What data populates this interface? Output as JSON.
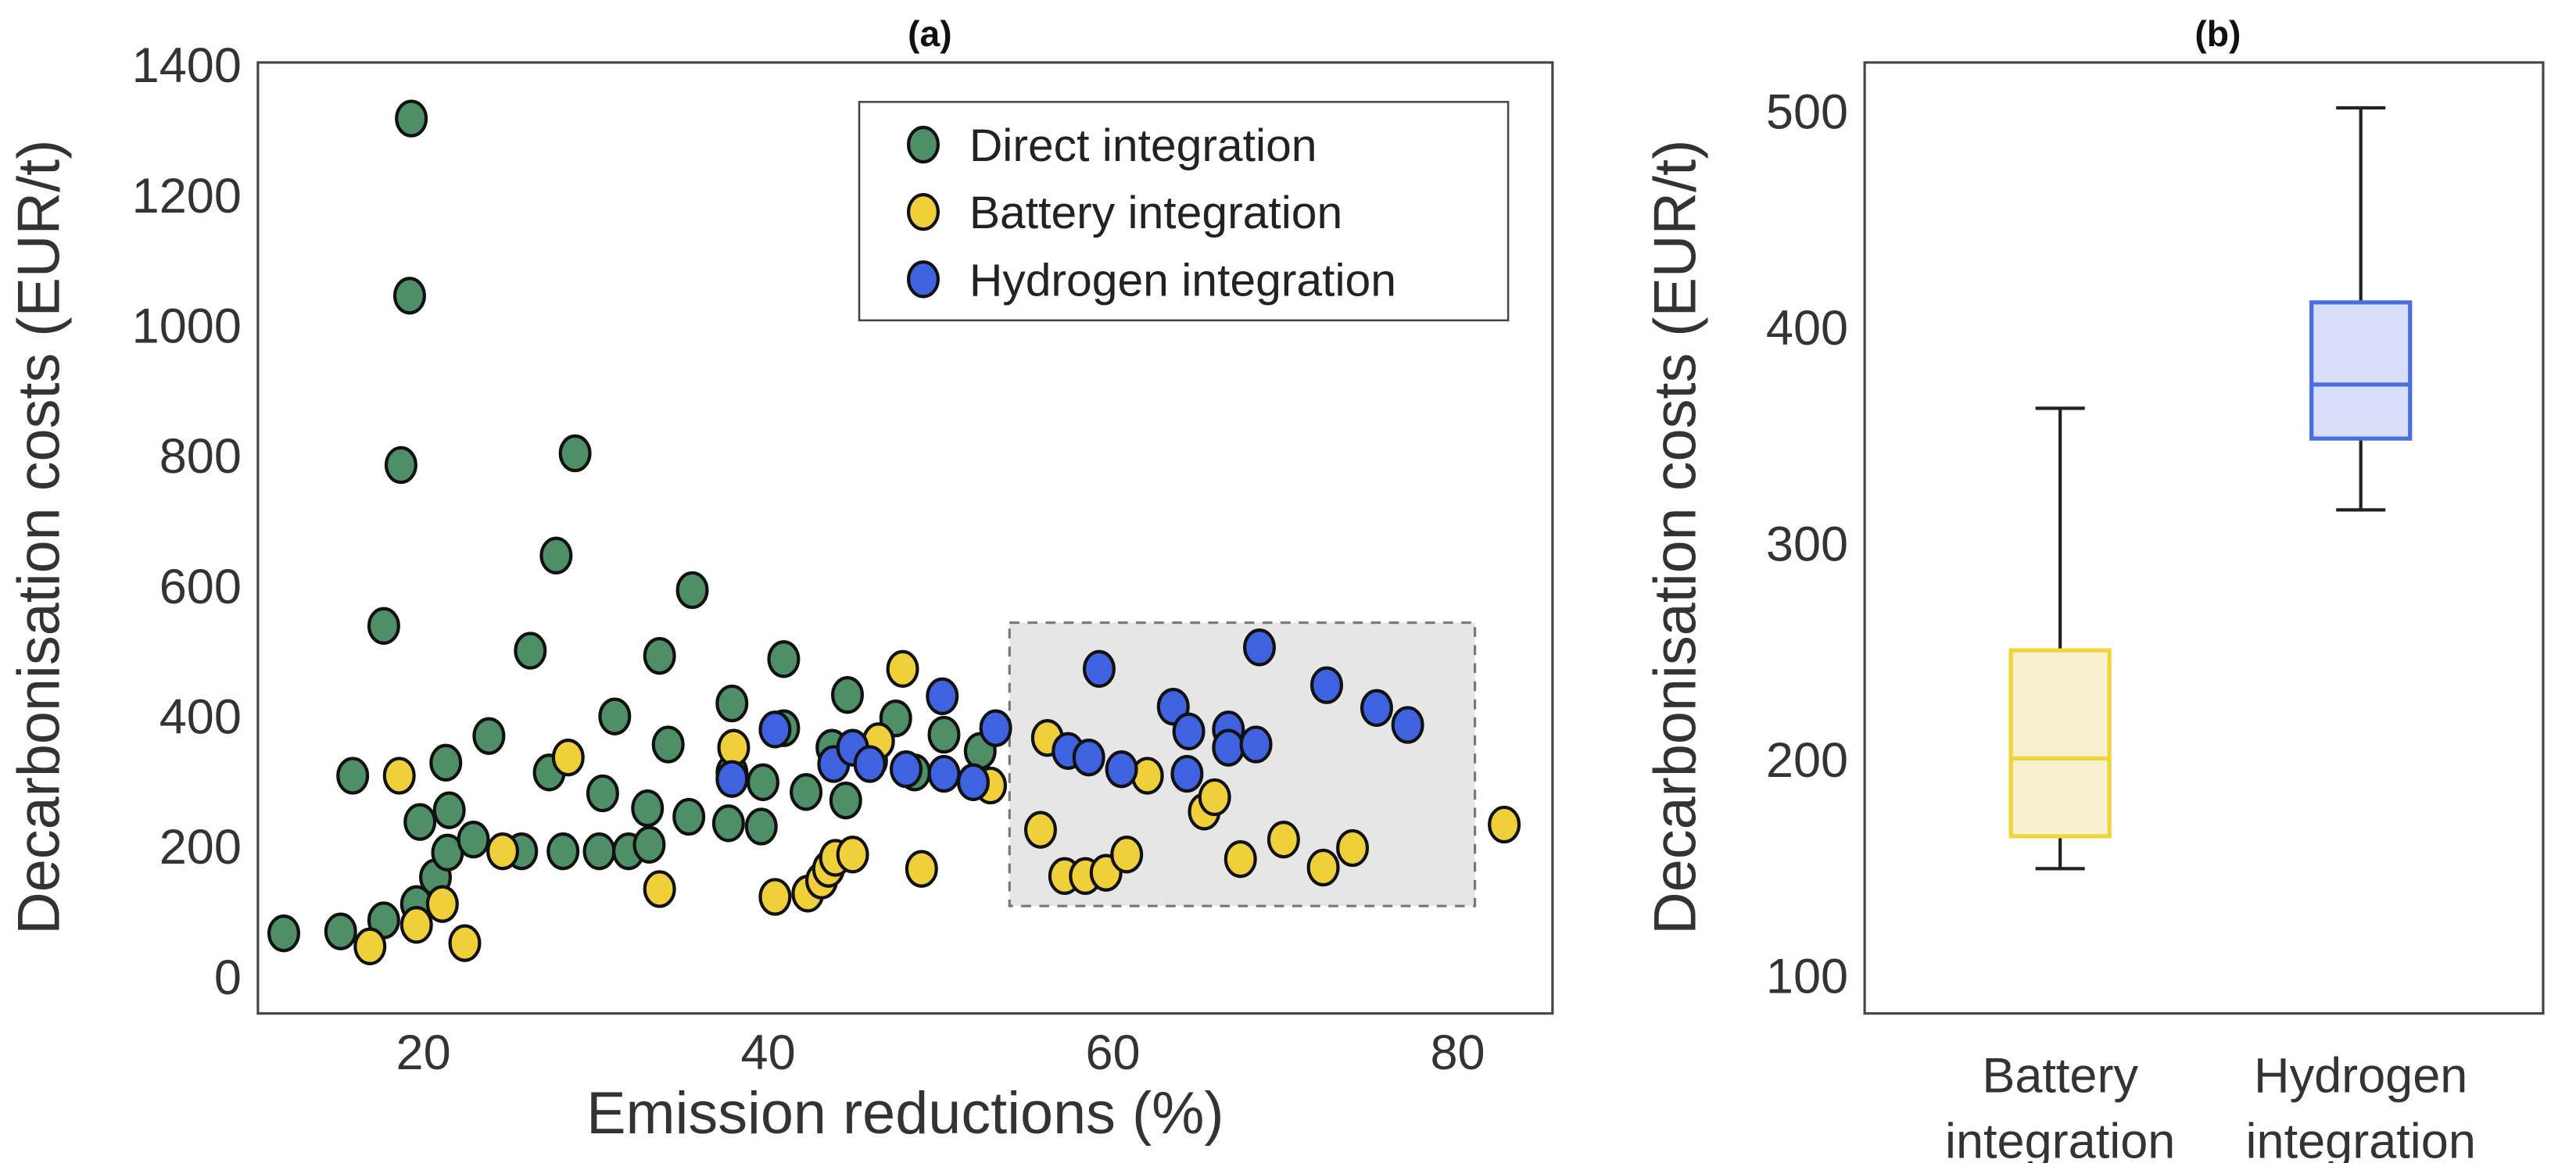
{
  "chart_data": [
    {
      "type": "scatter",
      "title": "(a)",
      "xlabel": "Emission reductions (%)",
      "ylabel": "Decarbonisation costs (EUR/t)",
      "xlim": [
        10.4,
        85.5
      ],
      "ylim": [
        -55,
        1405
      ],
      "xticks": [
        20,
        40,
        60,
        80
      ],
      "yticks": [
        0,
        200,
        400,
        600,
        800,
        1000,
        1200,
        1400
      ],
      "grid": false,
      "legend_position": "top-right",
      "highlight_region": {
        "x": [
          54,
          81
        ],
        "y": [
          110,
          545
        ]
      },
      "series": [
        {
          "name": "Direct integration",
          "color": "#4f8f68",
          "points": [
            [
              11.9,
              68
            ],
            [
              15.2,
              71
            ],
            [
              17.7,
              88
            ],
            [
              19.6,
              113
            ],
            [
              20.7,
              154
            ],
            [
              21.4,
              192
            ],
            [
              21.5,
              257
            ],
            [
              19.8,
              239
            ],
            [
              15.9,
              310
            ],
            [
              21.3,
              330
            ],
            [
              23.8,
              371
            ],
            [
              19.3,
              1319
            ],
            [
              19.2,
              1047
            ],
            [
              18.7,
              787
            ],
            [
              17.7,
              540
            ],
            [
              28.8,
              805
            ],
            [
              27.7,
              648
            ],
            [
              26.2,
              502
            ],
            [
              35.6,
              595
            ],
            [
              33.7,
              494
            ],
            [
              40.9,
              489
            ],
            [
              31.1,
              401
            ],
            [
              27.3,
              315
            ],
            [
              30.4,
              283
            ],
            [
              22.9,
              212
            ],
            [
              25.7,
              194
            ],
            [
              28.1,
              194
            ],
            [
              30.2,
              194
            ],
            [
              31.9,
              194
            ],
            [
              33.1,
              204
            ],
            [
              33.0,
              260
            ],
            [
              34.2,
              358
            ],
            [
              35.4,
              247
            ],
            [
              37.7,
              237
            ],
            [
              39.6,
              232
            ],
            [
              37.9,
              315
            ],
            [
              37.9,
              421
            ],
            [
              40.9,
              383
            ],
            [
              39.7,
              300
            ],
            [
              42.2,
              285
            ],
            [
              43.7,
              353
            ],
            [
              44.5,
              272
            ],
            [
              44.6,
              434
            ],
            [
              46.0,
              333
            ],
            [
              47.4,
              398
            ],
            [
              50.2,
              373
            ],
            [
              48.5,
              315
            ],
            [
              52.3,
              348
            ]
          ]
        },
        {
          "name": "Battery integration",
          "color": "#f0d03a",
          "points": [
            [
              18.6,
              310
            ],
            [
              16.9,
              48
            ],
            [
              19.6,
              81
            ],
            [
              21.1,
              113
            ],
            [
              22.4,
              53
            ],
            [
              24.6,
              194
            ],
            [
              28.4,
              338
            ],
            [
              33.7,
              136
            ],
            [
              38.0,
              353
            ],
            [
              40.4,
              124
            ],
            [
              42.3,
              129
            ],
            [
              43.1,
              149
            ],
            [
              43.5,
              167
            ],
            [
              43.9,
              184
            ],
            [
              44.9,
              189
            ],
            [
              46.4,
              363
            ],
            [
              47.8,
              474
            ],
            [
              48.9,
              167
            ],
            [
              52.9,
              295
            ],
            [
              56.2,
              368
            ],
            [
              55.8,
              227
            ],
            [
              57.2,
              156
            ],
            [
              58.4,
              156
            ],
            [
              59.6,
              161
            ],
            [
              60.8,
              189
            ],
            [
              62.0,
              310
            ],
            [
              65.3,
              255
            ],
            [
              65.9,
              277
            ],
            [
              67.4,
              182
            ],
            [
              69.9,
              212
            ],
            [
              72.2,
              169
            ],
            [
              73.9,
              199
            ],
            [
              82.7,
              235
            ]
          ]
        },
        {
          "name": "Hydrogen integration",
          "color": "#3f63e0",
          "points": [
            [
              37.9,
              305
            ],
            [
              40.4,
              381
            ],
            [
              43.8,
              328
            ],
            [
              44.9,
              353
            ],
            [
              45.9,
              328
            ],
            [
              48.0,
              320
            ],
            [
              50.1,
              432
            ],
            [
              50.2,
              313
            ],
            [
              51.9,
              300
            ],
            [
              53.2,
              383
            ],
            [
              59.2,
              474
            ],
            [
              57.4,
              348
            ],
            [
              58.6,
              338
            ],
            [
              60.5,
              320
            ],
            [
              64.3,
              313
            ],
            [
              63.5,
              416
            ],
            [
              64.4,
              378
            ],
            [
              66.7,
              381
            ],
            [
              66.7,
              353
            ],
            [
              68.3,
              358
            ],
            [
              68.5,
              507
            ],
            [
              72.4,
              449
            ],
            [
              75.3,
              414
            ],
            [
              77.1,
              388
            ]
          ]
        }
      ]
    },
    {
      "type": "box",
      "title": "(b)",
      "ylabel": "Decarbonisation costs (EUR/t)",
      "ylim": [
        83,
        523
      ],
      "yticks": [
        100,
        200,
        300,
        400,
        500
      ],
      "grid": false,
      "categories": [
        {
          "label_line1": "Battery",
          "label_line2": "integration",
          "min": 150,
          "q1": 165,
          "median": 201,
          "q3": 251,
          "max": 363,
          "fill": "#f8f1cf",
          "stroke": "#efd43a"
        },
        {
          "label_line1": "Hydrogen",
          "label_line2": "integration",
          "min": 316,
          "q1": 349,
          "median": 374,
          "q3": 412,
          "max": 502,
          "fill": "#d9dffa",
          "stroke": "#4a6ee0"
        }
      ]
    }
  ]
}
